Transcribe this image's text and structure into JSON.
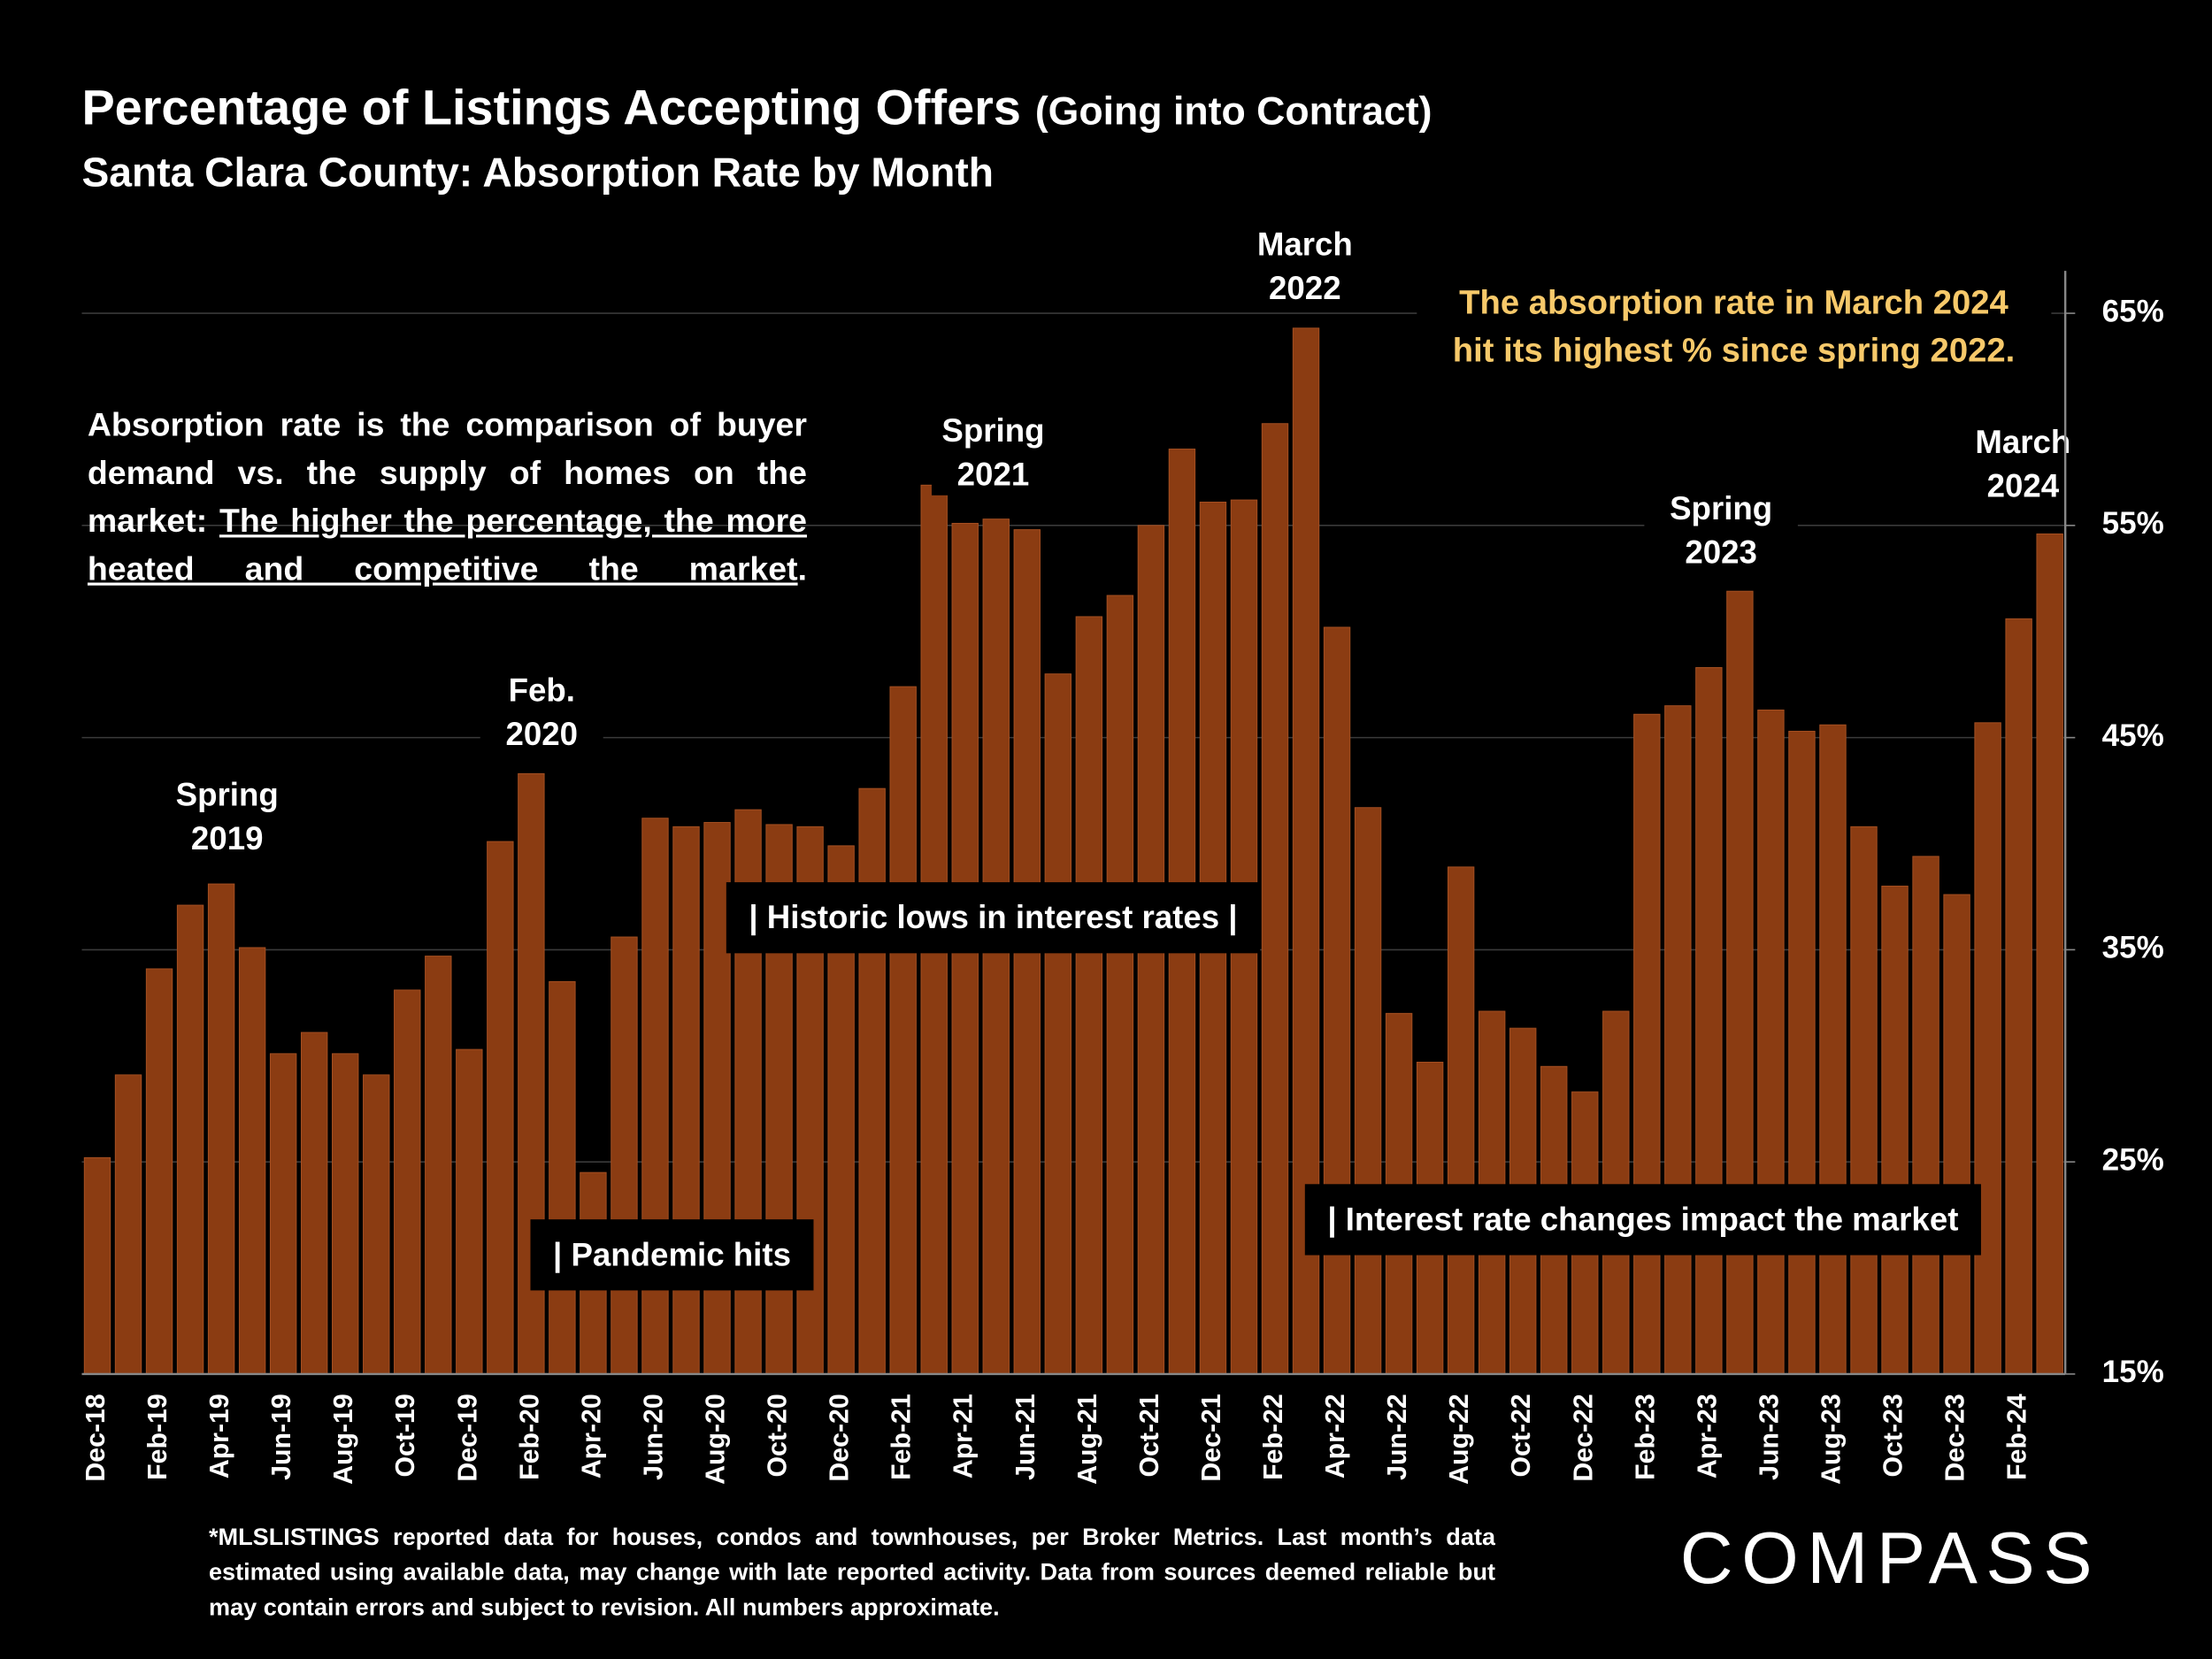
{
  "chart_data": {
    "type": "bar",
    "title": "Percentage of Listings Accepting Offers",
    "title_suffix": "(Going into Contract)",
    "subtitle": "Santa Clara County:  Absorption Rate by Month",
    "categories": [
      "Dec-18",
      null,
      "Feb-19",
      null,
      "Apr-19",
      null,
      "Jun-19",
      null,
      "Aug-19",
      null,
      "Oct-19",
      null,
      "Dec-19",
      null,
      "Feb-20",
      null,
      "Apr-20",
      null,
      "Jun-20",
      null,
      "Aug-20",
      null,
      "Oct-20",
      null,
      "Dec-20",
      null,
      "Feb-21",
      null,
      "Apr-21",
      null,
      "Jun-21",
      null,
      "Aug-21",
      null,
      "Oct-21",
      null,
      "Dec-21",
      null,
      "Feb-22",
      null,
      "Apr-22",
      null,
      "Jun-22",
      null,
      "Aug-22",
      null,
      "Oct-22",
      null,
      "Dec-22",
      null,
      "Feb-23",
      null,
      "Apr-23",
      null,
      "Jun-23",
      null,
      "Aug-23",
      null,
      "Oct-23",
      null,
      "Dec-23",
      null,
      "Feb-24",
      null
    ],
    "values": [
      25.2,
      29.1,
      34.1,
      37.1,
      38.1,
      35.1,
      30.1,
      31.1,
      30.1,
      29.1,
      33.1,
      34.7,
      30.3,
      40.1,
      43.3,
      33.5,
      24.5,
      35.6,
      41.2,
      40.8,
      41.0,
      41.6,
      40.9,
      40.8,
      39.9,
      42.6,
      47.4,
      56.9,
      55.1,
      55.3,
      54.8,
      48.0,
      50.7,
      51.7,
      55.0,
      58.6,
      56.1,
      56.2,
      59.8,
      64.3,
      50.2,
      41.7,
      32.0,
      29.7,
      38.9,
      32.1,
      31.3,
      29.5,
      28.3,
      32.1,
      46.1,
      46.5,
      48.3,
      51.9,
      46.3,
      45.3,
      45.6,
      40.8,
      38.0,
      39.4,
      37.6,
      45.7,
      50.6,
      54.6
    ],
    "color": "#8b3c12",
    "ylim": [
      15,
      67
    ],
    "yticks": [
      {
        "value": 15,
        "label": "15%"
      },
      {
        "value": 25,
        "label": "25%"
      },
      {
        "value": 35,
        "label": "35%"
      },
      {
        "value": 45,
        "label": "45%"
      },
      {
        "value": 55,
        "label": "55%"
      },
      {
        "value": 65,
        "label": "65%"
      }
    ],
    "grid": true,
    "period_labels": [
      [
        "Spring",
        "2019"
      ],
      [
        "Feb.",
        "2020"
      ],
      [
        "Spring",
        "2021"
      ],
      [
        "March",
        "2022"
      ],
      [
        "Spring",
        "2023"
      ],
      [
        "March",
        "2024"
      ]
    ],
    "callouts": [
      "|    Historic lows in interest rates    |",
      "| Pandemic hits",
      "| Interest rate changes impact the market"
    ],
    "highlight": [
      "The absorption rate in March 2024",
      "hit its highest % since spring 2022."
    ],
    "definition": [
      "Absorption rate is the comparison of buyer demand vs. the supply of homes on the market: ",
      "The higher the percentage, the more heated and competitive the market",
      "."
    ]
  },
  "footnote": "*MLSLISTINGS reported data for houses, condos and townhouses, per Broker Metrics. Last month’s data estimated using available data, may change with late reported activity. Data from sources deemed reliable but may contain errors and subject to revision. All numbers approximate.",
  "logo": "COMPASS"
}
